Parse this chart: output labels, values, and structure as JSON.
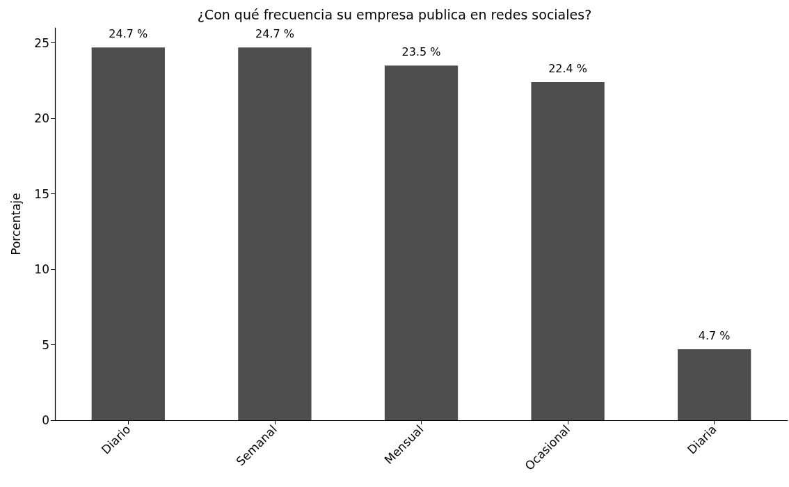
{
  "chart_data": {
    "type": "bar",
    "title": "¿Con qué frecuencia su empresa publica en redes sociales?",
    "ylabel": "Porcentaje",
    "categories": [
      "Diario",
      "Semanal",
      "Mensual",
      "Ocasional",
      "Diaria"
    ],
    "values": [
      24.7,
      24.7,
      23.5,
      22.4,
      4.7
    ],
    "value_labels": [
      "24.7 %",
      "24.7 %",
      "23.5 %",
      "22.4 %",
      "4.7 %"
    ],
    "color": "#4d4d4d",
    "ylim": [
      0,
      26
    ],
    "yticks": [
      0,
      5,
      10,
      15,
      20,
      25
    ],
    "grid": false
  }
}
